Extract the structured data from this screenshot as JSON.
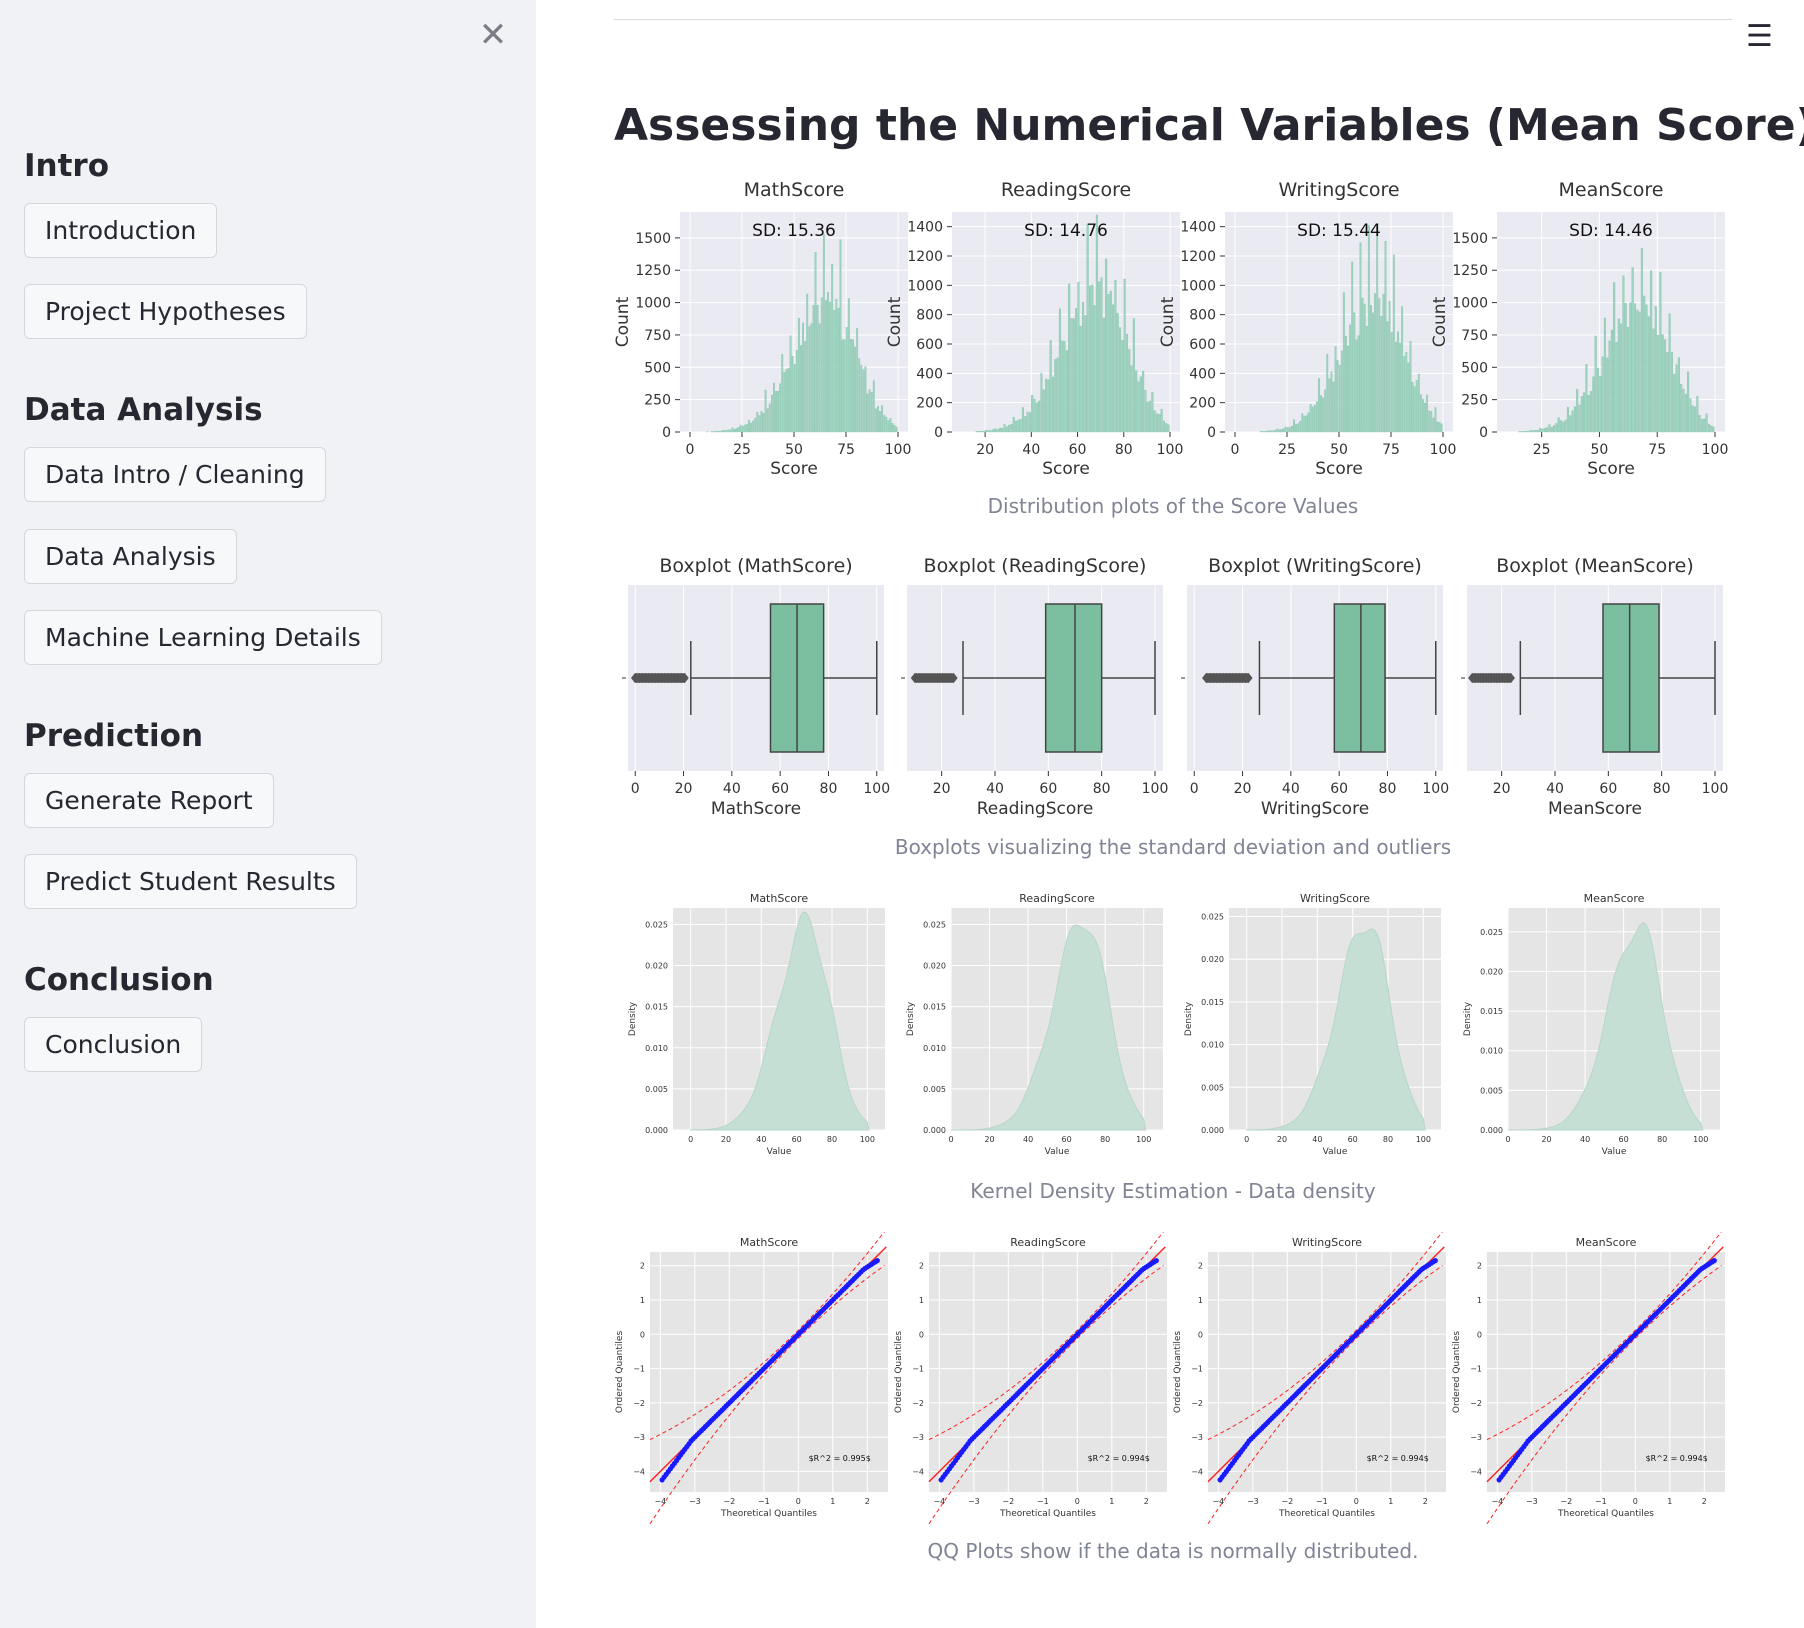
{
  "sidebar": {
    "close_icon": "close-icon",
    "sections": [
      {
        "title": "Intro",
        "buttons": [
          "Introduction",
          "Project Hypotheses"
        ]
      },
      {
        "title": "Data Analysis",
        "buttons": [
          "Data Intro / Cleaning",
          "Data Analysis",
          "Machine Learning Details"
        ]
      },
      {
        "title": "Prediction",
        "buttons": [
          "Generate Report",
          "Predict Student Results"
        ]
      },
      {
        "title": "Conclusion",
        "buttons": [
          "Conclusion"
        ]
      }
    ]
  },
  "main": {
    "menu_icon": "hamburger-menu-icon",
    "title": "Assessing the Numerical Variables (Mean Score)",
    "captions": {
      "hist": "Distribution plots of the Score Values",
      "box": "Boxplots visualizing the standard deviation and outliers",
      "kde": "Kernel Density Estimation - Data density",
      "qq": "QQ Plots show if the data is normally distributed."
    }
  },
  "colors": {
    "sidebar_bg": "#f0f2f6",
    "plot_bg": "#e5e5e5",
    "bar_fill": "#9dd3bf",
    "box_fill": "#7bbfa0",
    "kde_fill": "#c6dfd4",
    "qq_points": "#1a1aff",
    "qq_line": "#ff2020"
  },
  "chart_data": [
    {
      "type": "bar",
      "group": "histogram",
      "title": "MathScore",
      "annotation": "SD: 15.36",
      "xlabel": "Score",
      "ylabel": "Count",
      "xlim": [
        0,
        100
      ],
      "ylim": [
        0,
        1700
      ],
      "xticks": [
        0,
        25,
        50,
        75,
        100
      ],
      "yticks": [
        0,
        250,
        500,
        750,
        1000,
        1250,
        1500
      ],
      "mean": 66,
      "sd": 15.36,
      "peak": 1550
    },
    {
      "type": "bar",
      "group": "histogram",
      "title": "ReadingScore",
      "annotation": "SD: 14.76",
      "xlabel": "Score",
      "ylabel": "Count",
      "xlim": [
        10,
        100
      ],
      "ylim": [
        0,
        1500
      ],
      "xticks": [
        20,
        40,
        60,
        80,
        100
      ],
      "yticks": [
        0,
        200,
        400,
        600,
        800,
        1000,
        1200,
        1400
      ],
      "mean": 69,
      "sd": 14.76,
      "peak": 1480
    },
    {
      "type": "bar",
      "group": "histogram",
      "title": "WritingScore",
      "annotation": "SD: 15.44",
      "xlabel": "Score",
      "ylabel": "Count",
      "xlim": [
        0,
        100
      ],
      "ylim": [
        0,
        1500
      ],
      "xticks": [
        0,
        25,
        50,
        75,
        100
      ],
      "yticks": [
        0,
        200,
        400,
        600,
        800,
        1000,
        1200,
        1400
      ],
      "mean": 68,
      "sd": 15.44,
      "peak": 1420
    },
    {
      "type": "bar",
      "group": "histogram",
      "title": "MeanScore",
      "annotation": "SD: 14.46",
      "xlabel": "Score",
      "ylabel": "Count",
      "xlim": [
        10,
        100
      ],
      "ylim": [
        0,
        1700
      ],
      "xticks": [
        25,
        50,
        75,
        100
      ],
      "yticks": [
        0,
        250,
        500,
        750,
        1000,
        1250,
        1500
      ],
      "mean": 68,
      "sd": 14.46,
      "peak": 1580
    },
    {
      "type": "boxplot",
      "title": "Boxplot (MathScore)",
      "xlabel": "MathScore",
      "xlim": [
        -3,
        103
      ],
      "xticks": [
        0,
        20,
        40,
        60,
        80,
        100
      ],
      "q1": 56,
      "median": 67,
      "q3": 78,
      "whisker_low": 23,
      "whisker_high": 100,
      "outliers": [
        0,
        6,
        9,
        12,
        15,
        18,
        21
      ]
    },
    {
      "type": "boxplot",
      "title": "Boxplot (ReadingScore)",
      "xlabel": "ReadingScore",
      "xlim": [
        7,
        103
      ],
      "xticks": [
        20,
        40,
        60,
        80,
        100
      ],
      "q1": 59,
      "median": 70,
      "q3": 80,
      "whisker_low": 28,
      "whisker_high": 100,
      "outliers": [
        10,
        13,
        16,
        19,
        22,
        25
      ]
    },
    {
      "type": "boxplot",
      "title": "Boxplot (WritingScore)",
      "xlabel": "WritingScore",
      "xlim": [
        -3,
        103
      ],
      "xticks": [
        0,
        20,
        40,
        60,
        80,
        100
      ],
      "q1": 58,
      "median": 69,
      "q3": 79,
      "whisker_low": 27,
      "whisker_high": 100,
      "outliers": [
        5,
        8,
        11,
        14,
        17,
        20,
        23
      ]
    },
    {
      "type": "boxplot",
      "title": "Boxplot (MeanScore)",
      "xlabel": "MeanScore",
      "xlim": [
        7,
        103
      ],
      "xticks": [
        20,
        40,
        60,
        80,
        100
      ],
      "q1": 58,
      "median": 68,
      "q3": 79,
      "whisker_low": 27,
      "whisker_high": 100,
      "outliers": [
        9,
        12,
        15,
        18,
        21,
        24
      ]
    },
    {
      "type": "area",
      "group": "kde",
      "title": "MathScore",
      "xlabel": "Value",
      "ylabel": "Density",
      "xlim": [
        -10,
        110
      ],
      "ylim": [
        0,
        0.027
      ],
      "xticks": [
        0,
        20,
        40,
        60,
        80,
        100
      ],
      "yticks": [
        0.0,
        0.005,
        0.01,
        0.015,
        0.02,
        0.025
      ],
      "ytick_labels": [
        "0.000",
        "0.005",
        "0.010",
        "0.015",
        "0.020",
        "0.025"
      ],
      "mean": 66,
      "sd": 15.36,
      "peak": 0.0262
    },
    {
      "type": "area",
      "group": "kde",
      "title": "ReadingScore",
      "xlabel": "Value",
      "ylabel": "Density",
      "xlim": [
        0,
        110
      ],
      "ylim": [
        0,
        0.027
      ],
      "xticks": [
        0,
        20,
        40,
        60,
        80,
        100
      ],
      "yticks": [
        0.0,
        0.005,
        0.01,
        0.015,
        0.02,
        0.025
      ],
      "ytick_labels": [
        "0.000",
        "0.005",
        "0.010",
        "0.015",
        "0.020",
        "0.025"
      ],
      "mean": 69,
      "sd": 14.76,
      "peak": 0.0265
    },
    {
      "type": "area",
      "group": "kde",
      "title": "WritingScore",
      "xlabel": "Value",
      "ylabel": "Density",
      "xlim": [
        -10,
        110
      ],
      "ylim": [
        0,
        0.026
      ],
      "xticks": [
        0,
        20,
        40,
        60,
        80,
        100
      ],
      "yticks": [
        0.0,
        0.005,
        0.01,
        0.015,
        0.02,
        0.025
      ],
      "ytick_labels": [
        "0.000",
        "0.005",
        "0.010",
        "0.015",
        "0.020",
        "0.025"
      ],
      "mean": 68,
      "sd": 15.44,
      "peak": 0.0252
    },
    {
      "type": "area",
      "group": "kde",
      "title": "MeanScore",
      "xlabel": "Value",
      "ylabel": "Density",
      "xlim": [
        0,
        110
      ],
      "ylim": [
        0,
        0.028
      ],
      "xticks": [
        0,
        20,
        40,
        60,
        80,
        100
      ],
      "yticks": [
        0.0,
        0.005,
        0.01,
        0.015,
        0.02,
        0.025
      ],
      "ytick_labels": [
        "0.000",
        "0.005",
        "0.010",
        "0.015",
        "0.020",
        "0.025"
      ],
      "mean": 68,
      "sd": 14.46,
      "peak": 0.0267
    },
    {
      "type": "scatter",
      "group": "qq",
      "title": "MathScore",
      "xlabel": "Theoretical Quantiles",
      "ylabel": "Ordered Quantiles",
      "xlim": [
        -4.3,
        2.6
      ],
      "ylim": [
        -4.6,
        2.4
      ],
      "xticks": [
        -4,
        -3,
        -2,
        -1,
        0,
        1,
        2
      ],
      "yticks": [
        -4,
        -3,
        -2,
        -1,
        0,
        1,
        2
      ],
      "annotation": "$R^2 = 0.995$",
      "r2": 0.995
    },
    {
      "type": "scatter",
      "group": "qq",
      "title": "ReadingScore",
      "xlabel": "Theoretical Quantiles",
      "ylabel": "Ordered Quantiles",
      "xlim": [
        -4.3,
        2.6
      ],
      "ylim": [
        -4.6,
        2.4
      ],
      "xticks": [
        -4,
        -3,
        -2,
        -1,
        0,
        1,
        2
      ],
      "yticks": [
        -4,
        -3,
        -2,
        -1,
        0,
        1,
        2
      ],
      "annotation": "$R^2 = 0.994$",
      "r2": 0.994
    },
    {
      "type": "scatter",
      "group": "qq",
      "title": "WritingScore",
      "xlabel": "Theoretical Quantiles",
      "ylabel": "Ordered Quantiles",
      "xlim": [
        -4.3,
        2.6
      ],
      "ylim": [
        -4.6,
        2.4
      ],
      "xticks": [
        -4,
        -3,
        -2,
        -1,
        0,
        1,
        2
      ],
      "yticks": [
        -4,
        -3,
        -2,
        -1,
        0,
        1,
        2
      ],
      "annotation": "$R^2 = 0.994$",
      "r2": 0.994
    },
    {
      "type": "scatter",
      "group": "qq",
      "title": "MeanScore",
      "xlabel": "Theoretical Quantiles",
      "ylabel": "Ordered Quantiles",
      "xlim": [
        -4.3,
        2.6
      ],
      "ylim": [
        -4.6,
        2.4
      ],
      "xticks": [
        -4,
        -3,
        -2,
        -1,
        0,
        1,
        2
      ],
      "yticks": [
        -4,
        -3,
        -2,
        -1,
        0,
        1,
        2
      ],
      "annotation": "$R^2 = 0.994$",
      "r2": 0.994
    }
  ]
}
